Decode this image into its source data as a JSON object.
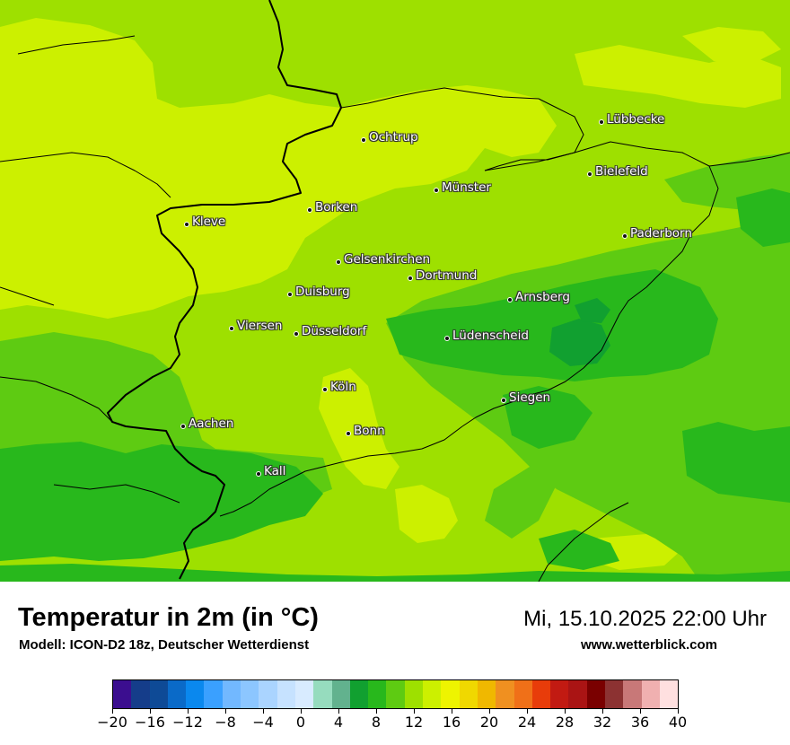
{
  "map": {
    "cities": [
      {
        "name": "Lübbecke"
      },
      {
        "name": "Ochtrup"
      },
      {
        "name": "Bielefeld"
      },
      {
        "name": "Münster"
      },
      {
        "name": "Borken"
      },
      {
        "name": "Kleve"
      },
      {
        "name": "Paderborn"
      },
      {
        "name": "Gelsenkirchen"
      },
      {
        "name": "Dortmund"
      },
      {
        "name": "Duisburg"
      },
      {
        "name": "Arnsberg"
      },
      {
        "name": "Viersen"
      },
      {
        "name": "Düsseldorf"
      },
      {
        "name": "Lüdenscheid"
      },
      {
        "name": "Köln"
      },
      {
        "name": "Siegen"
      },
      {
        "name": "Aachen"
      },
      {
        "name": "Bonn"
      },
      {
        "name": "Kall"
      }
    ],
    "colors": {
      "temp_12_14": "#9ee000",
      "temp_14_16": "#ccf000",
      "temp_10_12": "#5ecb12",
      "temp_8_10": "#28b81c",
      "temp_6_8": "#11a030",
      "border": "#000000"
    }
  },
  "footer": {
    "title": "Temperatur in 2m (in °C)",
    "model": "Modell: ICON-D2 18z, Deutscher Wetterdienst",
    "datetime": "Mi, 15.10.2025 22:00 Uhr",
    "website": "www.wetterblick.com"
  },
  "legend": {
    "min": -20,
    "max": 40,
    "tick_labels": [
      "−20",
      "−16",
      "−12",
      "−8",
      "−4",
      "0",
      "4",
      "8",
      "12",
      "16",
      "20",
      "24",
      "28",
      "32",
      "36",
      "40"
    ],
    "colors": [
      "#3b0e8f",
      "#153d8a",
      "#0e4a96",
      "#0a6ac8",
      "#0a88ee",
      "#3aa0ff",
      "#72b8ff",
      "#8cc6ff",
      "#aad4ff",
      "#c6e2ff",
      "#d8ebff",
      "#96dcbe",
      "#62b28e",
      "#11a030",
      "#28b81c",
      "#5ecb12",
      "#9ee000",
      "#ccf000",
      "#eef400",
      "#f0d800",
      "#f0b800",
      "#f09020",
      "#f07018",
      "#e83c0a",
      "#c21a12",
      "#aa1414",
      "#7a0000",
      "#8c3232",
      "#c87878",
      "#f0b0b0",
      "#ffe0e0"
    ]
  }
}
